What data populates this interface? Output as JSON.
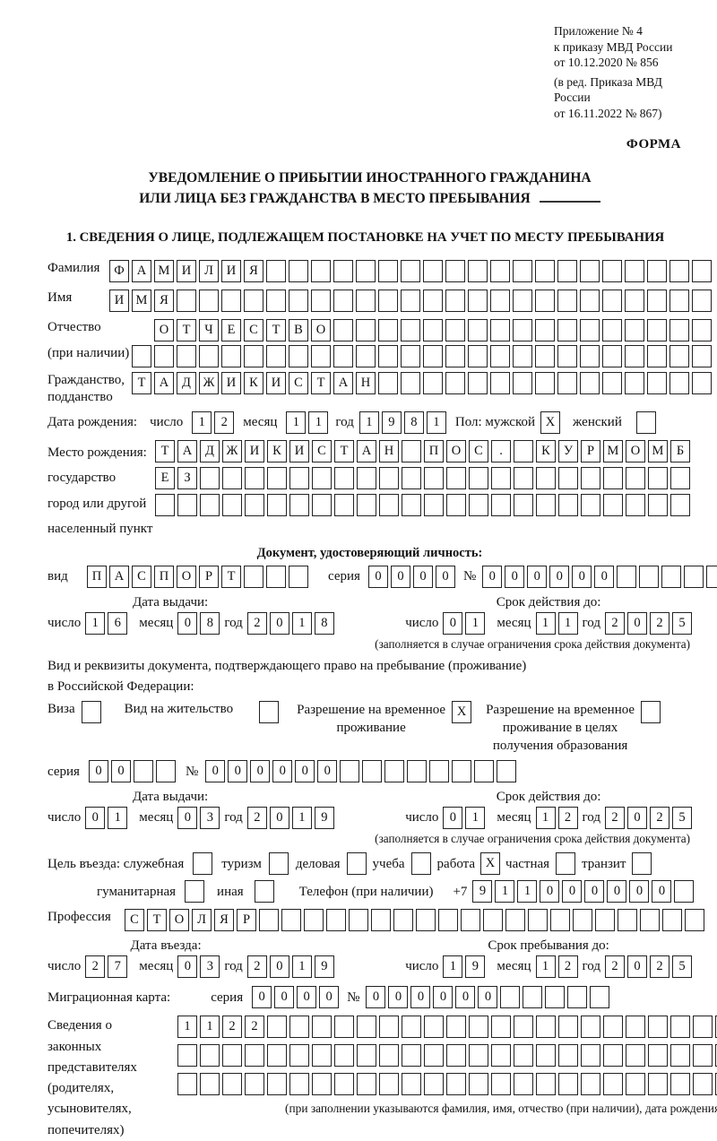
{
  "header": {
    "annex_lines": [
      "Приложение № 4",
      "к приказу МВД России",
      "от 10.12.2020 № 856"
    ],
    "amendment_lines": [
      "(в ред. Приказа МВД России",
      "от 16.11.2022 № 867)"
    ],
    "forma": "ФОРМА"
  },
  "title": {
    "line1": "УВЕДОМЛЕНИЕ О ПРИБЫТИИ ИНОСТРАННОГО ГРАЖДАНИНА",
    "line2": "ИЛИ ЛИЦА БЕЗ ГРАЖДАНСТВА В МЕСТО ПРЕБЫВАНИЯ"
  },
  "section1_heading": "1. СВЕДЕНИЯ О ЛИЦЕ, ПОДЛЕЖАЩЕМ ПОСТАНОВКЕ НА УЧЕТ ПО МЕСТУ ПРЕБЫВАНИЯ",
  "labels": {
    "day": "число",
    "month": "месяц",
    "year": "год",
    "series": "серия",
    "number_sign": "№"
  },
  "person": {
    "surname": {
      "label": "Фамилия",
      "boxes": {
        "v": "ФАМИЛИЯ",
        "n": 27
      }
    },
    "given_name": {
      "label": "Имя",
      "boxes": {
        "v": "ИМЯ",
        "n": 27
      }
    },
    "patronymic": {
      "label": "Отчество",
      "sublabel": "(при наличии)",
      "boxes": {
        "v": "ОТЧЕСТВО",
        "n": 25
      },
      "extra_boxes": {
        "v": "",
        "n": 26
      }
    },
    "citizenship": {
      "label_line1": "Гражданство,",
      "label_line2": "подданство",
      "boxes": {
        "v": "ТАДЖИКИСТАН",
        "n": 26
      }
    },
    "birth_date": {
      "label": "Дата рождения:",
      "day": "12",
      "month": "11",
      "year": "1981"
    },
    "sex": {
      "label": "Пол: мужской",
      "male_box": {
        "v": "X",
        "n": 1
      },
      "female_label": "женский",
      "female_box": {
        "v": "",
        "n": 1
      }
    },
    "birth_place": {
      "label_lines": [
        "Место рождения:",
        "государство",
        "город или другой",
        "населенный пункт"
      ],
      "rows": [
        {
          "v": "ТАДЖИКИСТАН ПОС. КУРМОМБ",
          "n": 24
        },
        {
          "v": "ЕЗ",
          "n": 24
        },
        {
          "v": "",
          "n": 24
        }
      ]
    }
  },
  "identity_doc": {
    "heading": "Документ, удостоверяющий личность:",
    "kind": {
      "label": "вид",
      "boxes": {
        "v": "ПАСПОРТ",
        "n": 10
      }
    },
    "series_boxes": {
      "v": "0000",
      "n": 4
    },
    "number_boxes": {
      "v": "000000",
      "n": 11
    },
    "issue": {
      "title": "Дата выдачи:",
      "day": "16",
      "month": "08",
      "year": "2018"
    },
    "expiry": {
      "title": "Срок действия до:",
      "day": "01",
      "month": "11",
      "year": "2025"
    },
    "expiry_note": "(заполняется в случае ограничения срока действия документа)"
  },
  "residence_doc": {
    "intro_line1": "Вид и реквизиты документа, подтверждающего право на пребывание (проживание)",
    "intro_line2": "в Российской Федерации:",
    "visa": {
      "label": "Виза",
      "box": {
        "v": "",
        "n": 1
      }
    },
    "residence_permit": {
      "label": "Вид на жительство",
      "box": {
        "v": "",
        "n": 1
      }
    },
    "temp_residence": {
      "label_lines": [
        "Разрешение на временное",
        "проживание"
      ],
      "box": {
        "v": "X",
        "n": 1
      }
    },
    "temp_residence_edu": {
      "label_lines": [
        "Разрешение на временное",
        "проживание в целях",
        "получения образования"
      ],
      "box": {
        "v": "",
        "n": 1
      }
    },
    "series_boxes": {
      "v": "00",
      "n": 4
    },
    "number_boxes": {
      "v": "000000",
      "n": 14
    },
    "issue": {
      "title": "Дата выдачи:",
      "day": "01",
      "month": "03",
      "year": "2019"
    },
    "expiry": {
      "title": "Срок действия до:",
      "day": "01",
      "month": "12",
      "year": "2025"
    },
    "expiry_note": "(заполняется в случае ограничения срока действия документа)"
  },
  "visit": {
    "purpose_label": "Цель въезда: служебная",
    "options": [
      {
        "label": "служебная",
        "box": {
          "v": "",
          "n": 1
        }
      },
      {
        "label": "туризм",
        "box": {
          "v": "",
          "n": 1
        }
      },
      {
        "label": "деловая",
        "box": {
          "v": "",
          "n": 1
        }
      },
      {
        "label": "учеба",
        "box": {
          "v": "",
          "n": 1
        }
      },
      {
        "label": "работа",
        "box": {
          "v": "X",
          "n": 1
        }
      },
      {
        "label": "частная",
        "box": {
          "v": "",
          "n": 1
        }
      },
      {
        "label": "транзит",
        "box": {
          "v": "",
          "n": 1
        }
      }
    ],
    "options_row2": [
      {
        "label": "гуманитарная",
        "box": {
          "v": "",
          "n": 1
        }
      },
      {
        "label": "иная",
        "box": {
          "v": "",
          "n": 1
        }
      }
    ],
    "phone": {
      "label": "Телефон (при наличии)",
      "prefix": "+7",
      "boxes": {
        "v": "911000000",
        "n": 10
      }
    },
    "profession": {
      "label": "Профессия",
      "boxes": {
        "v": "СТОЛЯР",
        "n": 26
      }
    },
    "entry": {
      "title": "Дата въезда:",
      "day": "27",
      "month": "03",
      "year": "2019"
    },
    "stay": {
      "title": "Срок пребывания до:",
      "day": "19",
      "month": "12",
      "year": "2025"
    }
  },
  "migration_card": {
    "label": "Миграционная карта:",
    "series_boxes": {
      "v": "0000",
      "n": 4
    },
    "number_boxes": {
      "v": "000000",
      "n": 11
    }
  },
  "representatives": {
    "label_lines": [
      "Сведения о",
      "законных",
      "представителях",
      "(родителях,",
      "усыновителях,",
      "попечителях)"
    ],
    "rows": [
      {
        "v": "1122",
        "n": 26
      },
      {
        "v": "",
        "n": 26
      },
      {
        "v": "",
        "n": 26
      }
    ],
    "note": "(при заполнении указываются фамилия, имя, отчество (при наличии), дата рождения)"
  }
}
